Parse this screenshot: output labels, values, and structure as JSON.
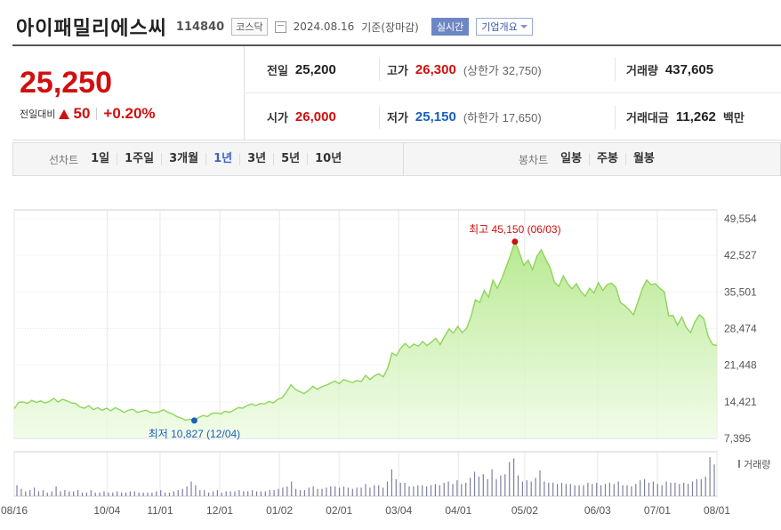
{
  "header": {
    "name": "아이패밀리에스씨",
    "code": "114840",
    "market": "코스닥",
    "date": "2024.08.16",
    "basis": "기준(장마감)",
    "realtime": "실시간",
    "company": "기업개요"
  },
  "summary": {
    "current_price": "25,250",
    "change_label": "전일대비",
    "change_value": "50",
    "change_pct": "+0.20%",
    "prev_label": "전일",
    "prev_value": "25,200",
    "high_label": "고가",
    "high_value": "26,300",
    "upper_limit": "(상한가 32,750)",
    "volume_label": "거래량",
    "volume_value": "437,605",
    "open_label": "시가",
    "open_value": "26,000",
    "low_label": "저가",
    "low_value": "25,150",
    "lower_limit": "(하한가 17,650)",
    "amount_label": "거래대금",
    "amount_value": "11,262",
    "amount_unit": "백만"
  },
  "tabs": {
    "line_label": "선차트",
    "line_tabs": [
      "1일",
      "1주일",
      "3개월",
      "1년",
      "3년",
      "5년",
      "10년"
    ],
    "active": "1년",
    "candle_label": "봉차트",
    "candle_tabs": [
      "일봉",
      "주봉",
      "월봉"
    ]
  },
  "colors": {
    "up": "#d10f0f",
    "down": "#1a5fbf",
    "line": "#8ed55a",
    "tab_active": "#3f62c1"
  },
  "chart_data": {
    "type": "area",
    "y_ticks": [
      "49,554",
      "42,527",
      "35,501",
      "28,474",
      "21,448",
      "14,421",
      "7,395"
    ],
    "ylim": [
      7395,
      49554
    ],
    "x_ticks": [
      "08/16",
      "10/04",
      "11/01",
      "12/01",
      "01/02",
      "02/01",
      "03/04",
      "04/01",
      "05/02",
      "06/03",
      "07/01",
      "08/01"
    ],
    "high_annotation": "최고 45,150 (06/03)",
    "low_annotation": "최저 10,827 (12/04)",
    "volume_legend": "거래량",
    "price_series": [
      13100,
      14300,
      14400,
      14100,
      14700,
      14300,
      14600,
      14200,
      14500,
      15100,
      14400,
      14900,
      14600,
      14200,
      14100,
      13400,
      13200,
      13700,
      12900,
      13300,
      12800,
      13200,
      12700,
      13300,
      12900,
      12400,
      12800,
      13000,
      12400,
      12600,
      12800,
      12400,
      12300,
      12500,
      12900,
      12400,
      12100,
      11600,
      11300,
      10900,
      11100,
      10827,
      11400,
      11800,
      11600,
      12200,
      12300,
      12100,
      12600,
      12400,
      12800,
      13300,
      13200,
      13700,
      14000,
      13700,
      14100,
      14000,
      14500,
      14200,
      14900,
      15200,
      16300,
      17700,
      16800,
      16400,
      16000,
      16600,
      17400,
      16800,
      17300,
      17600,
      18000,
      18400,
      17900,
      18700,
      18400,
      18100,
      18500,
      18300,
      19500,
      18700,
      19400,
      19800,
      19200,
      20800,
      23800,
      23300,
      24700,
      25600,
      24800,
      25500,
      25100,
      26000,
      25200,
      25900,
      26600,
      25400,
      27000,
      28400,
      27600,
      28900,
      27700,
      28500,
      30800,
      34000,
      33500,
      35800,
      34500,
      37800,
      36200,
      38100,
      40300,
      42600,
      45150,
      43100,
      40600,
      41600,
      39800,
      42400,
      43600,
      41800,
      40200,
      37400,
      36600,
      38600,
      37100,
      36100,
      37100,
      35600,
      34700,
      36200,
      35300,
      37300,
      35800,
      36900,
      37200,
      36400,
      33500,
      32900,
      32100,
      31100,
      33600,
      36100,
      37800,
      36900,
      37100,
      36200,
      35500,
      30900,
      31000,
      29100,
      30700,
      28700,
      27700,
      29800,
      31100,
      30400,
      27000,
      25400,
      25250
    ],
    "volume_series": [
      9,
      6,
      4,
      5,
      7,
      4,
      5,
      3,
      4,
      8,
      4,
      5,
      4,
      4,
      5,
      3,
      3,
      5,
      3,
      3,
      4,
      3,
      3,
      4,
      3,
      3,
      4,
      4,
      3,
      3,
      3,
      3,
      4,
      5,
      3,
      3,
      4,
      5,
      6,
      8,
      12,
      9,
      5,
      5,
      3,
      4,
      5,
      3,
      4,
      4,
      4,
      5,
      4,
      4,
      5,
      4,
      4,
      4,
      5,
      5,
      6,
      7,
      8,
      12,
      6,
      5,
      5,
      7,
      8,
      6,
      6,
      7,
      8,
      8,
      7,
      8,
      7,
      6,
      7,
      7,
      10,
      7,
      9,
      9,
      7,
      12,
      22,
      14,
      11,
      11,
      8,
      8,
      9,
      9,
      8,
      9,
      10,
      9,
      11,
      12,
      10,
      13,
      10,
      11,
      15,
      20,
      16,
      18,
      14,
      22,
      14,
      17,
      18,
      28,
      31,
      17,
      12,
      13,
      12,
      15,
      21,
      12,
      11,
      11,
      10,
      11,
      10,
      10,
      9,
      9,
      9,
      11,
      10,
      11,
      9,
      10,
      11,
      10,
      12,
      9,
      9,
      8,
      10,
      13,
      14,
      11,
      12,
      10,
      9,
      12,
      11,
      11,
      10,
      11,
      10,
      12,
      14,
      14,
      16,
      32,
      26
    ]
  }
}
